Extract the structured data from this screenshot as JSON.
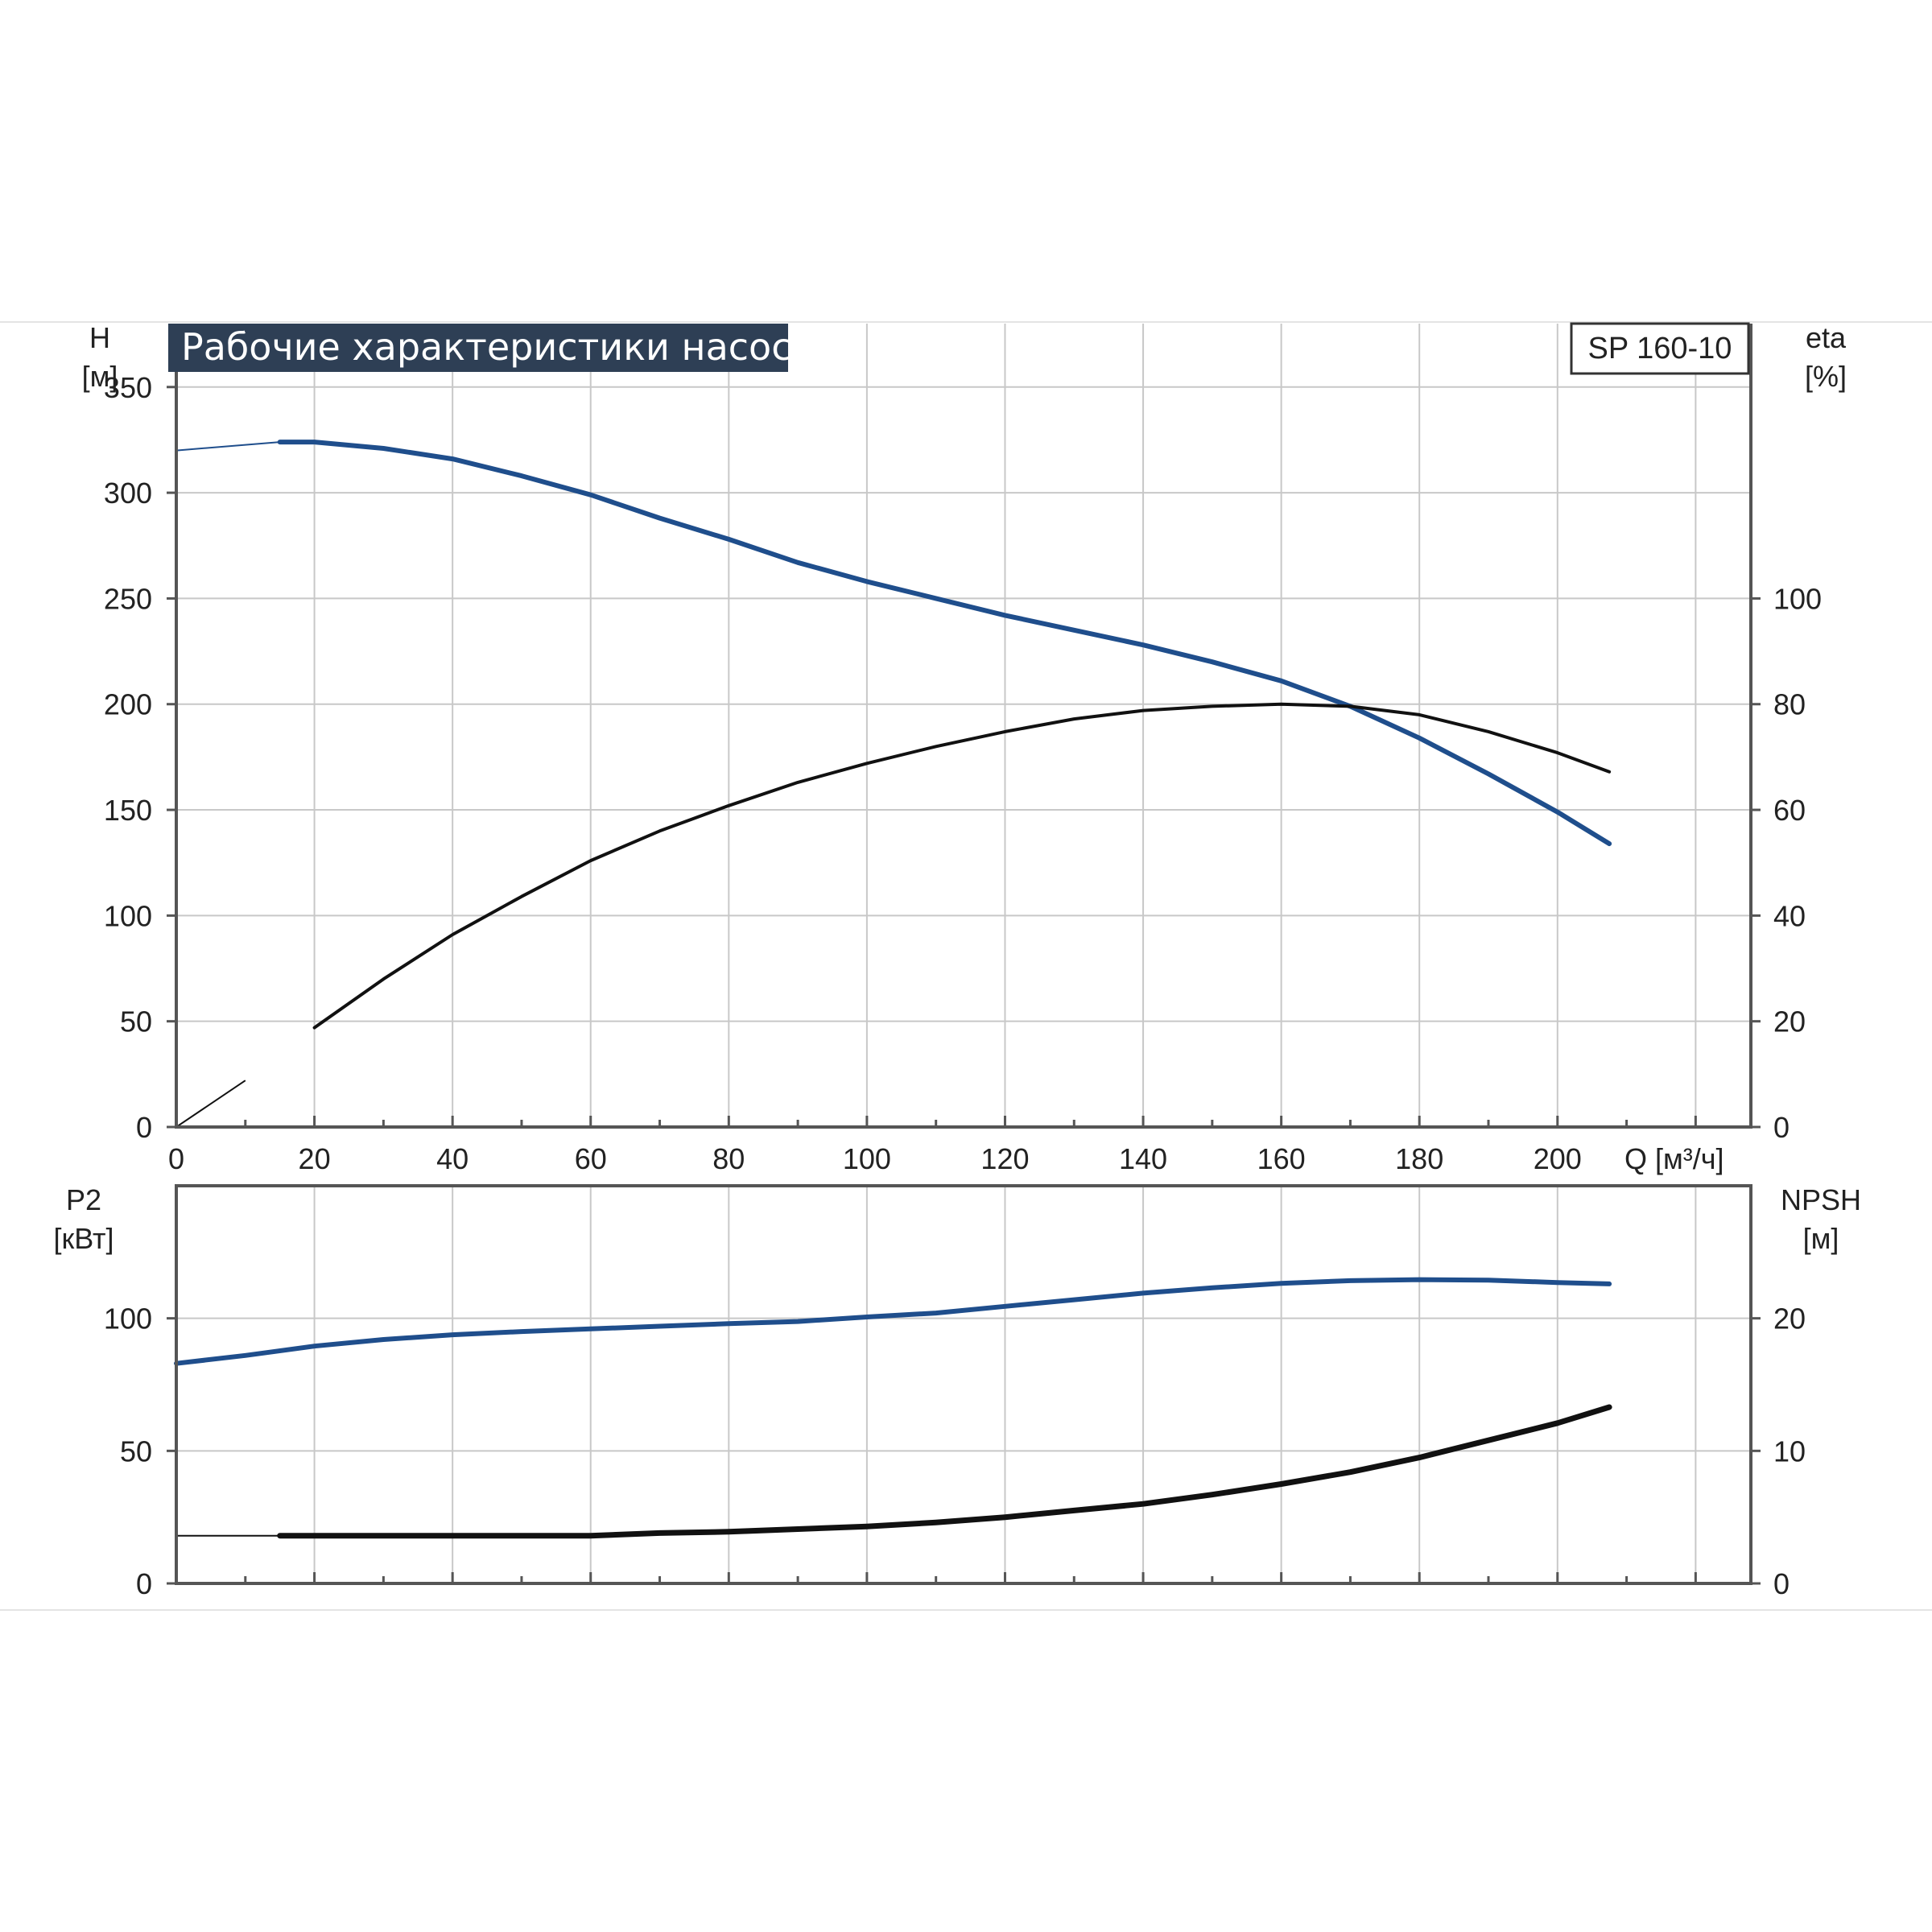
{
  "colors": {
    "blue": "#1f4e8c",
    "black": "#111111",
    "grid": "#c8c8c8",
    "axis": "#555555",
    "title_bg": "#2e3f55"
  },
  "chart_data": [
    {
      "type": "line",
      "title": "Рабочие характеристики насоса",
      "model_label": "SP 160-10",
      "x_label": "Q [м³/ч]",
      "xlim": [
        0,
        228
      ],
      "x_ticks": [
        0,
        20,
        40,
        60,
        80,
        100,
        120,
        140,
        160,
        180,
        200
      ],
      "y_left_label": "H",
      "y_left_unit": "[м]",
      "y_left_lim": [
        0,
        380
      ],
      "y_left_ticks": [
        0,
        50,
        100,
        150,
        200,
        250,
        300,
        350
      ],
      "y_right_label": "eta",
      "y_right_unit": "[%]",
      "y_right_lim": [
        0,
        152
      ],
      "y_right_ticks": [
        0,
        20,
        40,
        60,
        80,
        100
      ],
      "grid": true,
      "series": [
        {
          "axis": "left",
          "color": "#1f4e8c",
          "extrapolated_until": 15,
          "points": [
            [
              0,
              320
            ],
            [
              15,
              324
            ],
            [
              20,
              324
            ],
            [
              30,
              321
            ],
            [
              40,
              316
            ],
            [
              50,
              308
            ],
            [
              60,
              299
            ],
            [
              70,
              288
            ],
            [
              80,
              278
            ],
            [
              90,
              267
            ],
            [
              100,
              258
            ],
            [
              110,
              250
            ],
            [
              120,
              242
            ],
            [
              130,
              235
            ],
            [
              140,
              228
            ],
            [
              150,
              220
            ],
            [
              160,
              211
            ],
            [
              170,
              199
            ],
            [
              180,
              184
            ],
            [
              190,
              167
            ],
            [
              200,
              149
            ],
            [
              207.5,
              134
            ]
          ]
        },
        {
          "axis": "right",
          "color": "#111111",
          "extrapolated_until": 15,
          "points": [
            [
              0,
              0
            ],
            [
              10,
              8.8
            ],
            [
              20,
              18.8
            ],
            [
              30,
              28
            ],
            [
              40,
              36.4
            ],
            [
              50,
              43.6
            ],
            [
              60,
              50.4
            ],
            [
              70,
              56
            ],
            [
              80,
              60.8
            ],
            [
              90,
              65.2
            ],
            [
              100,
              68.8
            ],
            [
              110,
              72
            ],
            [
              120,
              74.8
            ],
            [
              130,
              77.2
            ],
            [
              140,
              78.8
            ],
            [
              150,
              79.6
            ],
            [
              160,
              80
            ],
            [
              170,
              79.6
            ],
            [
              180,
              78
            ],
            [
              190,
              74.8
            ],
            [
              200,
              70.8
            ],
            [
              207.5,
              67.2
            ]
          ]
        }
      ]
    },
    {
      "type": "line",
      "xlim": [
        0,
        228
      ],
      "x_ticks": [
        0,
        20,
        40,
        60,
        80,
        100,
        120,
        140,
        160,
        180,
        200
      ],
      "y_left_label": "P2",
      "y_left_unit": "[кВт]",
      "y_left_lim": [
        0,
        150
      ],
      "y_left_ticks": [
        0,
        50,
        100
      ],
      "y_right_label": "NPSH",
      "y_right_unit": "[м]",
      "y_right_lim": [
        0,
        30
      ],
      "y_right_ticks": [
        0,
        10,
        20
      ],
      "grid": true,
      "series": [
        {
          "axis": "left",
          "color": "#1f4e8c",
          "extrapolated_until": 0,
          "points": [
            [
              0,
              83
            ],
            [
              10,
              86
            ],
            [
              20,
              89.5
            ],
            [
              30,
              92
            ],
            [
              40,
              93.8
            ],
            [
              50,
              95
            ],
            [
              60,
              96
            ],
            [
              70,
              97
            ],
            [
              80,
              98
            ],
            [
              90,
              98.8
            ],
            [
              100,
              100.5
            ],
            [
              110,
              102
            ],
            [
              120,
              104.5
            ],
            [
              130,
              107
            ],
            [
              140,
              109.5
            ],
            [
              150,
              111.5
            ],
            [
              160,
              113.2
            ],
            [
              170,
              114.2
            ],
            [
              180,
              114.6
            ],
            [
              190,
              114.4
            ],
            [
              200,
              113.5
            ],
            [
              207.5,
              113
            ]
          ]
        },
        {
          "axis": "right",
          "color": "#111111",
          "extrapolated_until": 15,
          "points": [
            [
              0,
              3.6
            ],
            [
              15,
              3.6
            ],
            [
              30,
              3.6
            ],
            [
              50,
              3.6
            ],
            [
              60,
              3.6
            ],
            [
              70,
              3.8
            ],
            [
              80,
              3.9
            ],
            [
              90,
              4.1
            ],
            [
              100,
              4.3
            ],
            [
              110,
              4.6
            ],
            [
              120,
              5
            ],
            [
              130,
              5.5
            ],
            [
              140,
              6
            ],
            [
              150,
              6.7
            ],
            [
              160,
              7.5
            ],
            [
              170,
              8.4
            ],
            [
              180,
              9.5
            ],
            [
              190,
              10.8
            ],
            [
              200,
              12.1
            ],
            [
              207.5,
              13.3
            ]
          ]
        }
      ]
    }
  ]
}
